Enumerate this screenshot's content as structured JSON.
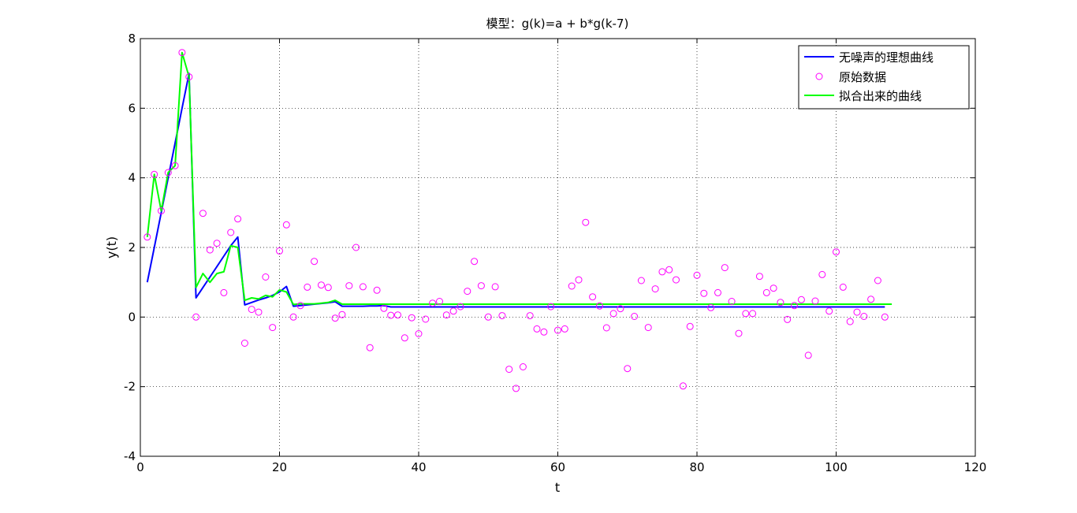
{
  "chart_data": {
    "type": "line",
    "title": "模型：g(k)=a + b*g(k-7)",
    "xlabel": "t",
    "ylabel": "y(t)",
    "xlim": [
      0,
      120
    ],
    "ylim": [
      -4,
      8
    ],
    "xticks": [
      0,
      20,
      40,
      60,
      80,
      100,
      120
    ],
    "yticks": [
      -4,
      -2,
      0,
      2,
      4,
      6,
      8
    ],
    "grid": true,
    "grid_style": "dotted",
    "legend_position": "top-right",
    "series": [
      {
        "name": "无噪声的理想曲线",
        "style": "line",
        "color": "#0000ff",
        "x": [
          1,
          2,
          3,
          4,
          5,
          6,
          7,
          8,
          9,
          10,
          11,
          12,
          13,
          14,
          15,
          16,
          17,
          18,
          19,
          20,
          21,
          22,
          23,
          24,
          25,
          26,
          27,
          28,
          29,
          30,
          31,
          32,
          33,
          34,
          35,
          36,
          37,
          38,
          39,
          40,
          41,
          42,
          43,
          44,
          45,
          46,
          47,
          48,
          49,
          50,
          51,
          52,
          53,
          54,
          55,
          56,
          57,
          58,
          59,
          60,
          61,
          62,
          63,
          64,
          65,
          66,
          67,
          68,
          69,
          70,
          71,
          72,
          73,
          74,
          75,
          76,
          77,
          78,
          79,
          80,
          81,
          82,
          83,
          84,
          85,
          86,
          87,
          88,
          89,
          90,
          91,
          92,
          93,
          94,
          95,
          96,
          97,
          98,
          99,
          100,
          101,
          102,
          103,
          104,
          105,
          106,
          107
        ],
        "y": [
          1.0,
          2.0,
          3.0,
          4.0,
          5.0,
          6.0,
          7.0,
          0.55,
          0.85,
          1.15,
          1.45,
          1.75,
          2.05,
          2.3,
          0.35,
          0.42,
          0.49,
          0.55,
          0.62,
          0.72,
          0.88,
          0.31,
          0.33,
          0.35,
          0.37,
          0.39,
          0.41,
          0.44,
          0.31,
          0.31,
          0.31,
          0.31,
          0.32,
          0.32,
          0.33,
          0.29,
          0.29,
          0.29,
          0.29,
          0.29,
          0.29,
          0.29,
          0.29,
          0.29,
          0.29,
          0.29,
          0.29,
          0.29,
          0.29,
          0.29,
          0.29,
          0.29,
          0.29,
          0.29,
          0.29,
          0.29,
          0.29,
          0.29,
          0.29,
          0.29,
          0.29,
          0.29,
          0.29,
          0.29,
          0.29,
          0.29,
          0.29,
          0.29,
          0.29,
          0.29,
          0.29,
          0.29,
          0.29,
          0.29,
          0.29,
          0.29,
          0.29,
          0.29,
          0.29,
          0.29,
          0.29,
          0.29,
          0.29,
          0.29,
          0.29,
          0.29,
          0.29,
          0.29,
          0.29,
          0.29,
          0.29,
          0.29,
          0.29,
          0.29,
          0.29,
          0.29,
          0.29,
          0.29,
          0.29,
          0.29,
          0.29,
          0.29,
          0.29,
          0.29,
          0.29,
          0.29,
          0.29
        ]
      },
      {
        "name": "原始数据",
        "style": "markers",
        "marker": "circle",
        "color": "#ff00ff",
        "x": [
          1,
          2,
          3,
          4,
          5,
          6,
          7,
          8,
          9,
          10,
          11,
          12,
          13,
          14,
          15,
          16,
          17,
          18,
          19,
          20,
          21,
          22,
          23,
          24,
          25,
          26,
          27,
          28,
          29,
          30,
          31,
          32,
          33,
          34,
          35,
          36,
          37,
          38,
          39,
          40,
          41,
          42,
          43,
          44,
          45,
          46,
          47,
          48,
          49,
          50,
          51,
          52,
          53,
          54,
          55,
          56,
          57,
          58,
          59,
          60,
          61,
          62,
          63,
          64,
          65,
          66,
          67,
          68,
          69,
          70,
          71,
          72,
          73,
          74,
          75,
          76,
          77,
          78,
          79,
          80,
          81,
          82,
          83,
          84,
          85,
          86,
          87,
          88,
          89,
          90,
          91,
          92,
          93,
          94,
          95,
          96,
          97,
          98,
          99,
          100,
          101,
          102,
          103,
          104,
          105,
          106,
          107
        ],
        "y": [
          2.3,
          4.1,
          3.05,
          4.15,
          4.35,
          7.6,
          6.9,
          0.0,
          2.98,
          1.93,
          2.12,
          0.7,
          2.43,
          2.82,
          -0.75,
          0.22,
          0.14,
          1.15,
          -0.3,
          1.9,
          2.65,
          0.0,
          0.33,
          0.86,
          1.6,
          0.92,
          0.85,
          -0.03,
          0.07,
          0.9,
          2.0,
          0.87,
          -0.88,
          0.77,
          0.25,
          0.05,
          0.06,
          -0.6,
          -0.02,
          -0.48,
          -0.06,
          0.4,
          0.45,
          0.06,
          0.17,
          0.3,
          0.74,
          1.6,
          0.9,
          0.0,
          0.87,
          0.04,
          -1.5,
          -2.05,
          -1.43,
          0.04,
          -0.34,
          -0.43,
          0.3,
          -0.38,
          -0.34,
          0.89,
          1.07,
          2.72,
          0.58,
          0.32,
          -0.31,
          0.1,
          0.24,
          -1.48,
          0.02,
          1.05,
          -0.3,
          0.81,
          1.3,
          1.36,
          1.07,
          -1.98,
          -0.27,
          1.2,
          0.68,
          0.27,
          0.7,
          1.42,
          0.45,
          -0.47,
          0.1,
          0.1,
          1.17,
          0.7,
          0.83,
          0.42,
          -0.07,
          0.33,
          0.5,
          -1.1,
          0.46,
          1.22,
          0.17,
          1.87,
          0.86,
          -0.13,
          0.14,
          0.02,
          0.51,
          1.05,
          0.0
        ]
      },
      {
        "name": "拟合出来的曲线",
        "style": "line",
        "color": "#00ff00",
        "x": [
          1,
          2,
          3,
          4,
          5,
          6,
          7,
          8,
          9,
          10,
          11,
          12,
          13,
          14,
          15,
          16,
          17,
          18,
          19,
          20,
          21,
          22,
          23,
          24,
          25,
          26,
          27,
          28,
          29,
          30,
          31,
          32,
          33,
          34,
          35,
          36,
          37,
          38,
          39,
          40,
          41,
          42,
          43,
          44,
          45,
          46,
          47,
          48,
          49,
          50,
          51,
          52,
          53,
          54,
          55,
          56,
          57,
          58,
          59,
          60,
          61,
          62,
          63,
          64,
          65,
          66,
          67,
          68,
          69,
          70,
          71,
          72,
          73,
          74,
          75,
          76,
          77,
          78,
          79,
          80,
          81,
          82,
          83,
          84,
          85,
          86,
          87,
          88,
          89,
          90,
          91,
          92,
          93,
          94,
          95,
          96,
          97,
          98,
          99,
          100,
          101,
          102,
          103,
          104,
          105,
          106,
          107,
          108
        ],
        "y": [
          2.3,
          4.1,
          3.05,
          4.15,
          4.35,
          7.6,
          6.9,
          0.85,
          1.25,
          1.0,
          1.25,
          1.3,
          2.05,
          2.0,
          0.48,
          0.55,
          0.52,
          0.62,
          0.58,
          0.78,
          0.72,
          0.36,
          0.38,
          0.38,
          0.38,
          0.4,
          0.42,
          0.48,
          0.37,
          0.37,
          0.37,
          0.37,
          0.37,
          0.37,
          0.37,
          0.37,
          0.37,
          0.37,
          0.37,
          0.37,
          0.37,
          0.37,
          0.37,
          0.37,
          0.37,
          0.37,
          0.37,
          0.37,
          0.37,
          0.37,
          0.37,
          0.37,
          0.37,
          0.37,
          0.37,
          0.37,
          0.37,
          0.37,
          0.37,
          0.37,
          0.37,
          0.37,
          0.37,
          0.37,
          0.37,
          0.37,
          0.37,
          0.37,
          0.37,
          0.37,
          0.37,
          0.37,
          0.37,
          0.37,
          0.37,
          0.37,
          0.37,
          0.37,
          0.37,
          0.37,
          0.37,
          0.37,
          0.37,
          0.37,
          0.37,
          0.37,
          0.37,
          0.37,
          0.37,
          0.37,
          0.37,
          0.37,
          0.37,
          0.37,
          0.37,
          0.37,
          0.37,
          0.37,
          0.37,
          0.37,
          0.37,
          0.37,
          0.37,
          0.37,
          0.37,
          0.37,
          0.37,
          0.37
        ]
      }
    ]
  }
}
